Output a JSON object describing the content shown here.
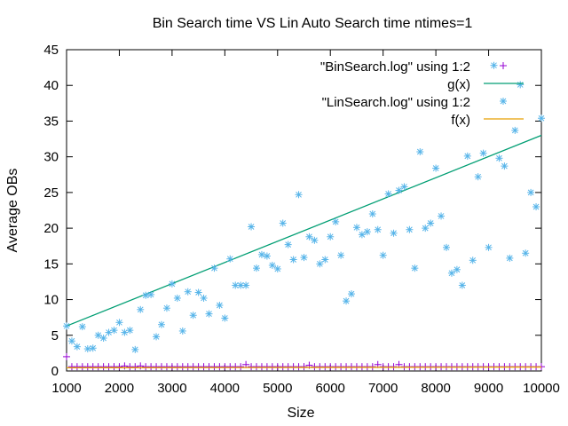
{
  "chart_data": {
    "type": "scatter",
    "title": "Bin Search time VS Lin Auto Search time ntimes=1",
    "xlabel": "Size",
    "ylabel": "Average OBs",
    "xlim": [
      1000,
      10000
    ],
    "ylim": [
      0,
      45
    ],
    "x_ticks": [
      "1000",
      "2000",
      "3000",
      "4000",
      "5000",
      "6000",
      "7000",
      "8000",
      "9000",
      "10000"
    ],
    "y_ticks": [
      "0",
      "5",
      "10",
      "15",
      "20",
      "25",
      "30",
      "35",
      "40",
      "45"
    ],
    "grid": false,
    "legend_position": "top-right",
    "legend": [
      {
        "label": "\"BinSearch.log\" using 1:2",
        "kind": "plus",
        "color": "#9400d3"
      },
      {
        "label": "g(x)",
        "kind": "line",
        "color": "#009e73"
      },
      {
        "label": "\"LinSearch.log\" using 1:2",
        "kind": "star",
        "color": "#56b4e9"
      },
      {
        "label": "f(x)",
        "kind": "line",
        "color": "#e69f00"
      }
    ],
    "series": [
      {
        "name": "\"BinSearch.log\" using 1:2",
        "kind": "plus",
        "color": "#9400d3",
        "points": [
          [
            1000,
            2.0
          ],
          [
            1100,
            0.6
          ],
          [
            1200,
            0.6
          ],
          [
            1300,
            0.6
          ],
          [
            1400,
            0.6
          ],
          [
            1500,
            0.6
          ],
          [
            1600,
            0.6
          ],
          [
            1700,
            0.6
          ],
          [
            1800,
            0.6
          ],
          [
            1900,
            0.6
          ],
          [
            2000,
            0.6
          ],
          [
            2100,
            0.7
          ],
          [
            2200,
            0.6
          ],
          [
            2300,
            0.6
          ],
          [
            2400,
            0.7
          ],
          [
            2500,
            0.6
          ],
          [
            2600,
            0.6
          ],
          [
            2700,
            0.6
          ],
          [
            2800,
            0.6
          ],
          [
            2900,
            0.6
          ],
          [
            3000,
            0.6
          ],
          [
            3100,
            0.6
          ],
          [
            3200,
            0.6
          ],
          [
            3300,
            0.6
          ],
          [
            3400,
            0.6
          ],
          [
            3500,
            0.6
          ],
          [
            3600,
            0.6
          ],
          [
            3700,
            0.6
          ],
          [
            3800,
            0.6
          ],
          [
            3900,
            0.6
          ],
          [
            4000,
            0.6
          ],
          [
            4100,
            0.6
          ],
          [
            4200,
            0.6
          ],
          [
            4300,
            0.6
          ],
          [
            4400,
            0.9
          ],
          [
            4500,
            0.6
          ],
          [
            4600,
            0.6
          ],
          [
            4700,
            0.6
          ],
          [
            4800,
            0.6
          ],
          [
            4900,
            0.6
          ],
          [
            5000,
            0.6
          ],
          [
            5100,
            0.6
          ],
          [
            5200,
            0.6
          ],
          [
            5300,
            0.6
          ],
          [
            5400,
            0.6
          ],
          [
            5500,
            0.6
          ],
          [
            5600,
            0.8
          ],
          [
            5700,
            0.6
          ],
          [
            5800,
            0.6
          ],
          [
            5900,
            0.6
          ],
          [
            6000,
            0.6
          ],
          [
            6100,
            0.6
          ],
          [
            6200,
            0.6
          ],
          [
            6300,
            0.6
          ],
          [
            6400,
            0.6
          ],
          [
            6500,
            0.6
          ],
          [
            6600,
            0.6
          ],
          [
            6700,
            0.6
          ],
          [
            6800,
            0.6
          ],
          [
            6900,
            0.9
          ],
          [
            7000,
            0.6
          ],
          [
            7100,
            0.6
          ],
          [
            7200,
            0.6
          ],
          [
            7300,
            0.9
          ],
          [
            7400,
            0.6
          ],
          [
            7500,
            0.6
          ],
          [
            7600,
            0.6
          ],
          [
            7700,
            0.6
          ],
          [
            7800,
            0.6
          ],
          [
            7900,
            0.6
          ],
          [
            8000,
            0.6
          ],
          [
            8100,
            0.6
          ],
          [
            8200,
            0.6
          ],
          [
            8300,
            0.6
          ],
          [
            8400,
            0.6
          ],
          [
            8500,
            0.6
          ],
          [
            8600,
            0.6
          ],
          [
            8700,
            0.6
          ],
          [
            8800,
            0.6
          ],
          [
            8900,
            0.6
          ],
          [
            9000,
            0.6
          ],
          [
            9100,
            0.6
          ],
          [
            9200,
            0.6
          ],
          [
            9300,
            0.6
          ],
          [
            9400,
            0.6
          ],
          [
            9500,
            0.6
          ],
          [
            9600,
            0.6
          ],
          [
            9700,
            0.6
          ],
          [
            9800,
            0.6
          ],
          [
            9900,
            0.6
          ],
          [
            10000,
            0.6
          ]
        ]
      },
      {
        "name": "g(x)",
        "kind": "line",
        "color": "#009e73",
        "points": [
          [
            1000,
            6.3
          ],
          [
            10000,
            33.0
          ]
        ]
      },
      {
        "name": "\"LinSearch.log\" using 1:2",
        "kind": "star",
        "color": "#56b4e9",
        "points": [
          [
            1000,
            6.3
          ],
          [
            1100,
            4.2
          ],
          [
            1200,
            3.4
          ],
          [
            1300,
            6.2
          ],
          [
            1400,
            3.1
          ],
          [
            1500,
            3.2
          ],
          [
            1600,
            5.0
          ],
          [
            1700,
            4.6
          ],
          [
            1800,
            5.4
          ],
          [
            1900,
            5.7
          ],
          [
            2000,
            6.8
          ],
          [
            2100,
            5.4
          ],
          [
            2200,
            5.7
          ],
          [
            2300,
            3.0
          ],
          [
            2400,
            8.6
          ],
          [
            2500,
            10.6
          ],
          [
            2600,
            10.7
          ],
          [
            2700,
            4.8
          ],
          [
            2800,
            6.5
          ],
          [
            2900,
            8.8
          ],
          [
            3000,
            12.2
          ],
          [
            3100,
            10.2
          ],
          [
            3200,
            5.6
          ],
          [
            3300,
            11.1
          ],
          [
            3400,
            7.8
          ],
          [
            3500,
            11.0
          ],
          [
            3600,
            10.2
          ],
          [
            3700,
            8.0
          ],
          [
            3800,
            14.4
          ],
          [
            3900,
            9.2
          ],
          [
            4000,
            7.4
          ],
          [
            4100,
            15.7
          ],
          [
            4200,
            12.0
          ],
          [
            4300,
            12.0
          ],
          [
            4400,
            12.0
          ],
          [
            4500,
            20.2
          ],
          [
            4600,
            14.4
          ],
          [
            4700,
            16.3
          ],
          [
            4800,
            16.1
          ],
          [
            4900,
            14.8
          ],
          [
            5000,
            14.3
          ],
          [
            5100,
            20.7
          ],
          [
            5200,
            17.7
          ],
          [
            5300,
            15.6
          ],
          [
            5400,
            24.7
          ],
          [
            5500,
            15.9
          ],
          [
            5600,
            18.8
          ],
          [
            5700,
            18.3
          ],
          [
            5800,
            15.0
          ],
          [
            5900,
            15.6
          ],
          [
            6000,
            18.8
          ],
          [
            6100,
            20.9
          ],
          [
            6200,
            16.2
          ],
          [
            6300,
            9.8
          ],
          [
            6400,
            10.8
          ],
          [
            6500,
            20.1
          ],
          [
            6600,
            19.1
          ],
          [
            6700,
            19.5
          ],
          [
            6800,
            22.0
          ],
          [
            6900,
            19.8
          ],
          [
            7000,
            16.2
          ],
          [
            7100,
            24.8
          ],
          [
            7200,
            19.3
          ],
          [
            7300,
            25.3
          ],
          [
            7400,
            25.8
          ],
          [
            7500,
            19.8
          ],
          [
            7600,
            14.4
          ],
          [
            7700,
            30.7
          ],
          [
            7800,
            20.0
          ],
          [
            7900,
            20.7
          ],
          [
            8000,
            28.4
          ],
          [
            8100,
            21.7
          ],
          [
            8200,
            17.3
          ],
          [
            8300,
            13.7
          ],
          [
            8400,
            14.2
          ],
          [
            8500,
            12.0
          ],
          [
            8600,
            30.1
          ],
          [
            8700,
            15.5
          ],
          [
            8800,
            27.2
          ],
          [
            8900,
            30.5
          ],
          [
            9000,
            17.3
          ],
          [
            9100,
            42.8
          ],
          [
            9200,
            29.8
          ],
          [
            9300,
            28.7
          ],
          [
            9400,
            15.8
          ],
          [
            9500,
            33.7
          ],
          [
            9600,
            40.1
          ],
          [
            9700,
            16.5
          ],
          [
            9800,
            25.0
          ],
          [
            9900,
            23.0
          ],
          [
            10000,
            35.4
          ]
        ]
      },
      {
        "name": "f(x)",
        "kind": "line",
        "color": "#e69f00",
        "points": [
          [
            1000,
            0.45
          ],
          [
            10000,
            0.55
          ]
        ]
      }
    ]
  }
}
